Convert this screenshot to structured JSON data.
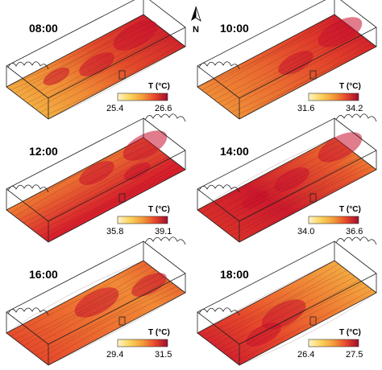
{
  "north": {
    "label": "N",
    "icon": "north-arrow-icon"
  },
  "colorbar": {
    "title": "T (°C)",
    "colors": [
      "#fff3c8",
      "#fbd35a",
      "#f39a3a",
      "#e8472a",
      "#c8102e",
      "#9e0c2e"
    ]
  },
  "panels": [
    {
      "time": "08:00",
      "tmin": "25.4",
      "tmax": "26.6"
    },
    {
      "time": "10:00",
      "tmin": "31.6",
      "tmax": "34.2"
    },
    {
      "time": "12:00",
      "tmin": "35.8",
      "tmax": "39.1"
    },
    {
      "time": "14:00",
      "tmin": "34.0",
      "tmax": "36.6"
    },
    {
      "time": "16:00",
      "tmin": "29.4",
      "tmax": "31.5"
    },
    {
      "time": "18:00",
      "tmin": "26.4",
      "tmax": "27.5"
    }
  ]
}
